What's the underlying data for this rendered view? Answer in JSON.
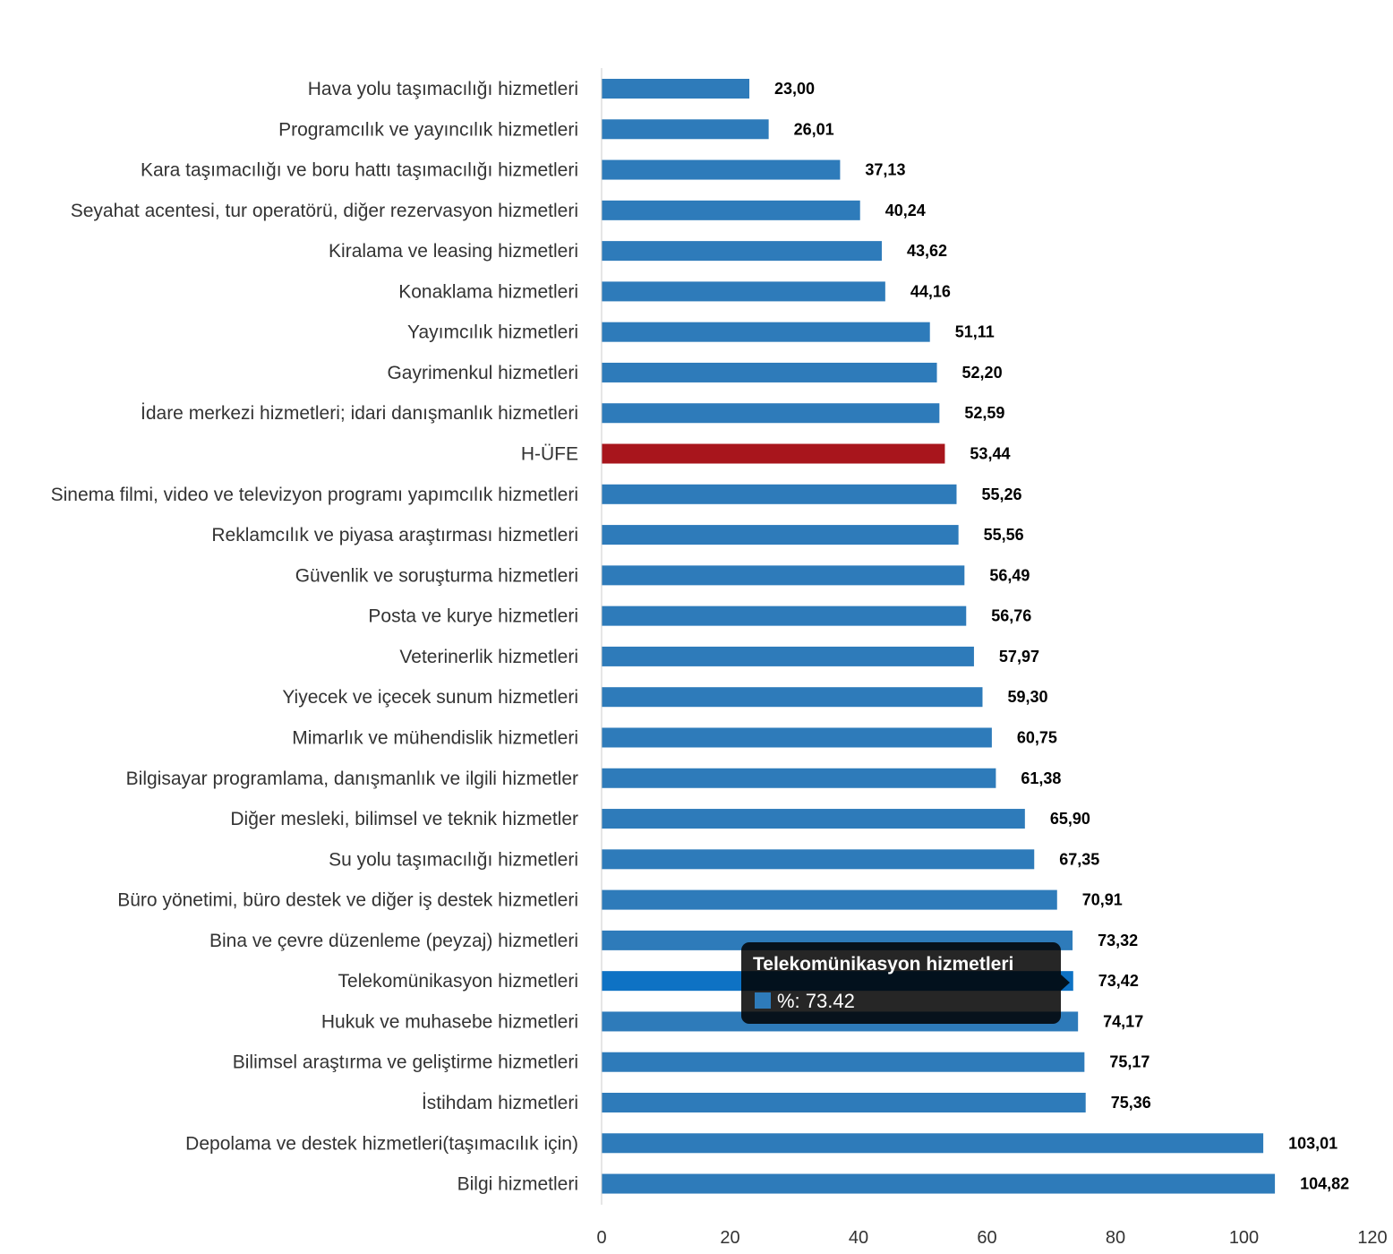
{
  "chart_data": {
    "type": "bar",
    "orientation": "horizontal",
    "categories": [
      "Hava yolu taşımacılığı hizmetleri",
      "Programcılık ve yayıncılık hizmetleri",
      "Kara taşımacılığı ve boru hattı taşımacılığı hizmetleri",
      "Seyahat acentesi, tur operatörü, diğer rezervasyon hizmetleri",
      "Kiralama ve leasing hizmetleri",
      "Konaklama hizmetleri",
      "Yayımcılık hizmetleri",
      "Gayrimenkul hizmetleri",
      "İdare merkezi hizmetleri; idari danışmanlık hizmetleri",
      "H-ÜFE",
      "Sinema filmi, video ve televizyon programı yapımcılık hizmetleri",
      "Reklamcılık ve piyasa araştırması hizmetleri",
      "Güvenlik ve soruşturma hizmetleri",
      "Posta ve kurye hizmetleri",
      "Veterinerlik hizmetleri",
      "Yiyecek ve içecek sunum hizmetleri",
      "Mimarlık ve mühendislik hizmetleri",
      "Bilgisayar programlama, danışmanlık ve ilgili hizmetler",
      "Diğer mesleki, bilimsel ve teknik hizmetler",
      "Su yolu taşımacılığı hizmetleri",
      "Büro yönetimi, büro destek ve diğer iş destek hizmetleri",
      "Bina ve çevre düzenleme (peyzaj) hizmetleri",
      "Telekomünikasyon hizmetleri",
      "Hukuk ve muhasebe hizmetleri",
      "Bilimsel araştırma ve geliştirme hizmetleri",
      "İstihdam hizmetleri",
      "Depolama ve destek hizmetleri(taşımacılık için)",
      "Bilgi hizmetleri"
    ],
    "values": [
      23.0,
      26.01,
      37.13,
      40.24,
      43.62,
      44.16,
      51.11,
      52.2,
      52.59,
      53.44,
      55.26,
      55.56,
      56.49,
      56.76,
      57.97,
      59.3,
      60.75,
      61.38,
      65.9,
      67.35,
      70.91,
      73.32,
      73.42,
      74.17,
      75.17,
      75.36,
      103.01,
      104.82
    ],
    "value_labels": [
      "23,00",
      "26,01",
      "37,13",
      "40,24",
      "43,62",
      "44,16",
      "51,11",
      "52,20",
      "52,59",
      "53,44",
      "55,26",
      "55,56",
      "56,49",
      "56,76",
      "57,97",
      "59,30",
      "60,75",
      "61,38",
      "65,90",
      "67,35",
      "70,91",
      "73,32",
      "73,42",
      "74,17",
      "75,17",
      "75,36",
      "103,01",
      "104,82"
    ],
    "xlim": [
      0,
      120
    ],
    "xticks": [
      0,
      20,
      40,
      60,
      80,
      100,
      120
    ],
    "grid": false,
    "legend": "none",
    "highlight_category": "H-ÜFE",
    "hovered_category": "Telekomünikasyon hizmetleri",
    "colors": {
      "bar": "#2e7bba",
      "highlight": "#a8151c",
      "hovered": "#0e72c4",
      "axis": "#cccccc"
    }
  },
  "tooltip": {
    "title": "Telekomünikasyon hizmetleri",
    "value_text": "%: 73.42",
    "swatch_color": "#2e7bba",
    "background": "#000000"
  }
}
